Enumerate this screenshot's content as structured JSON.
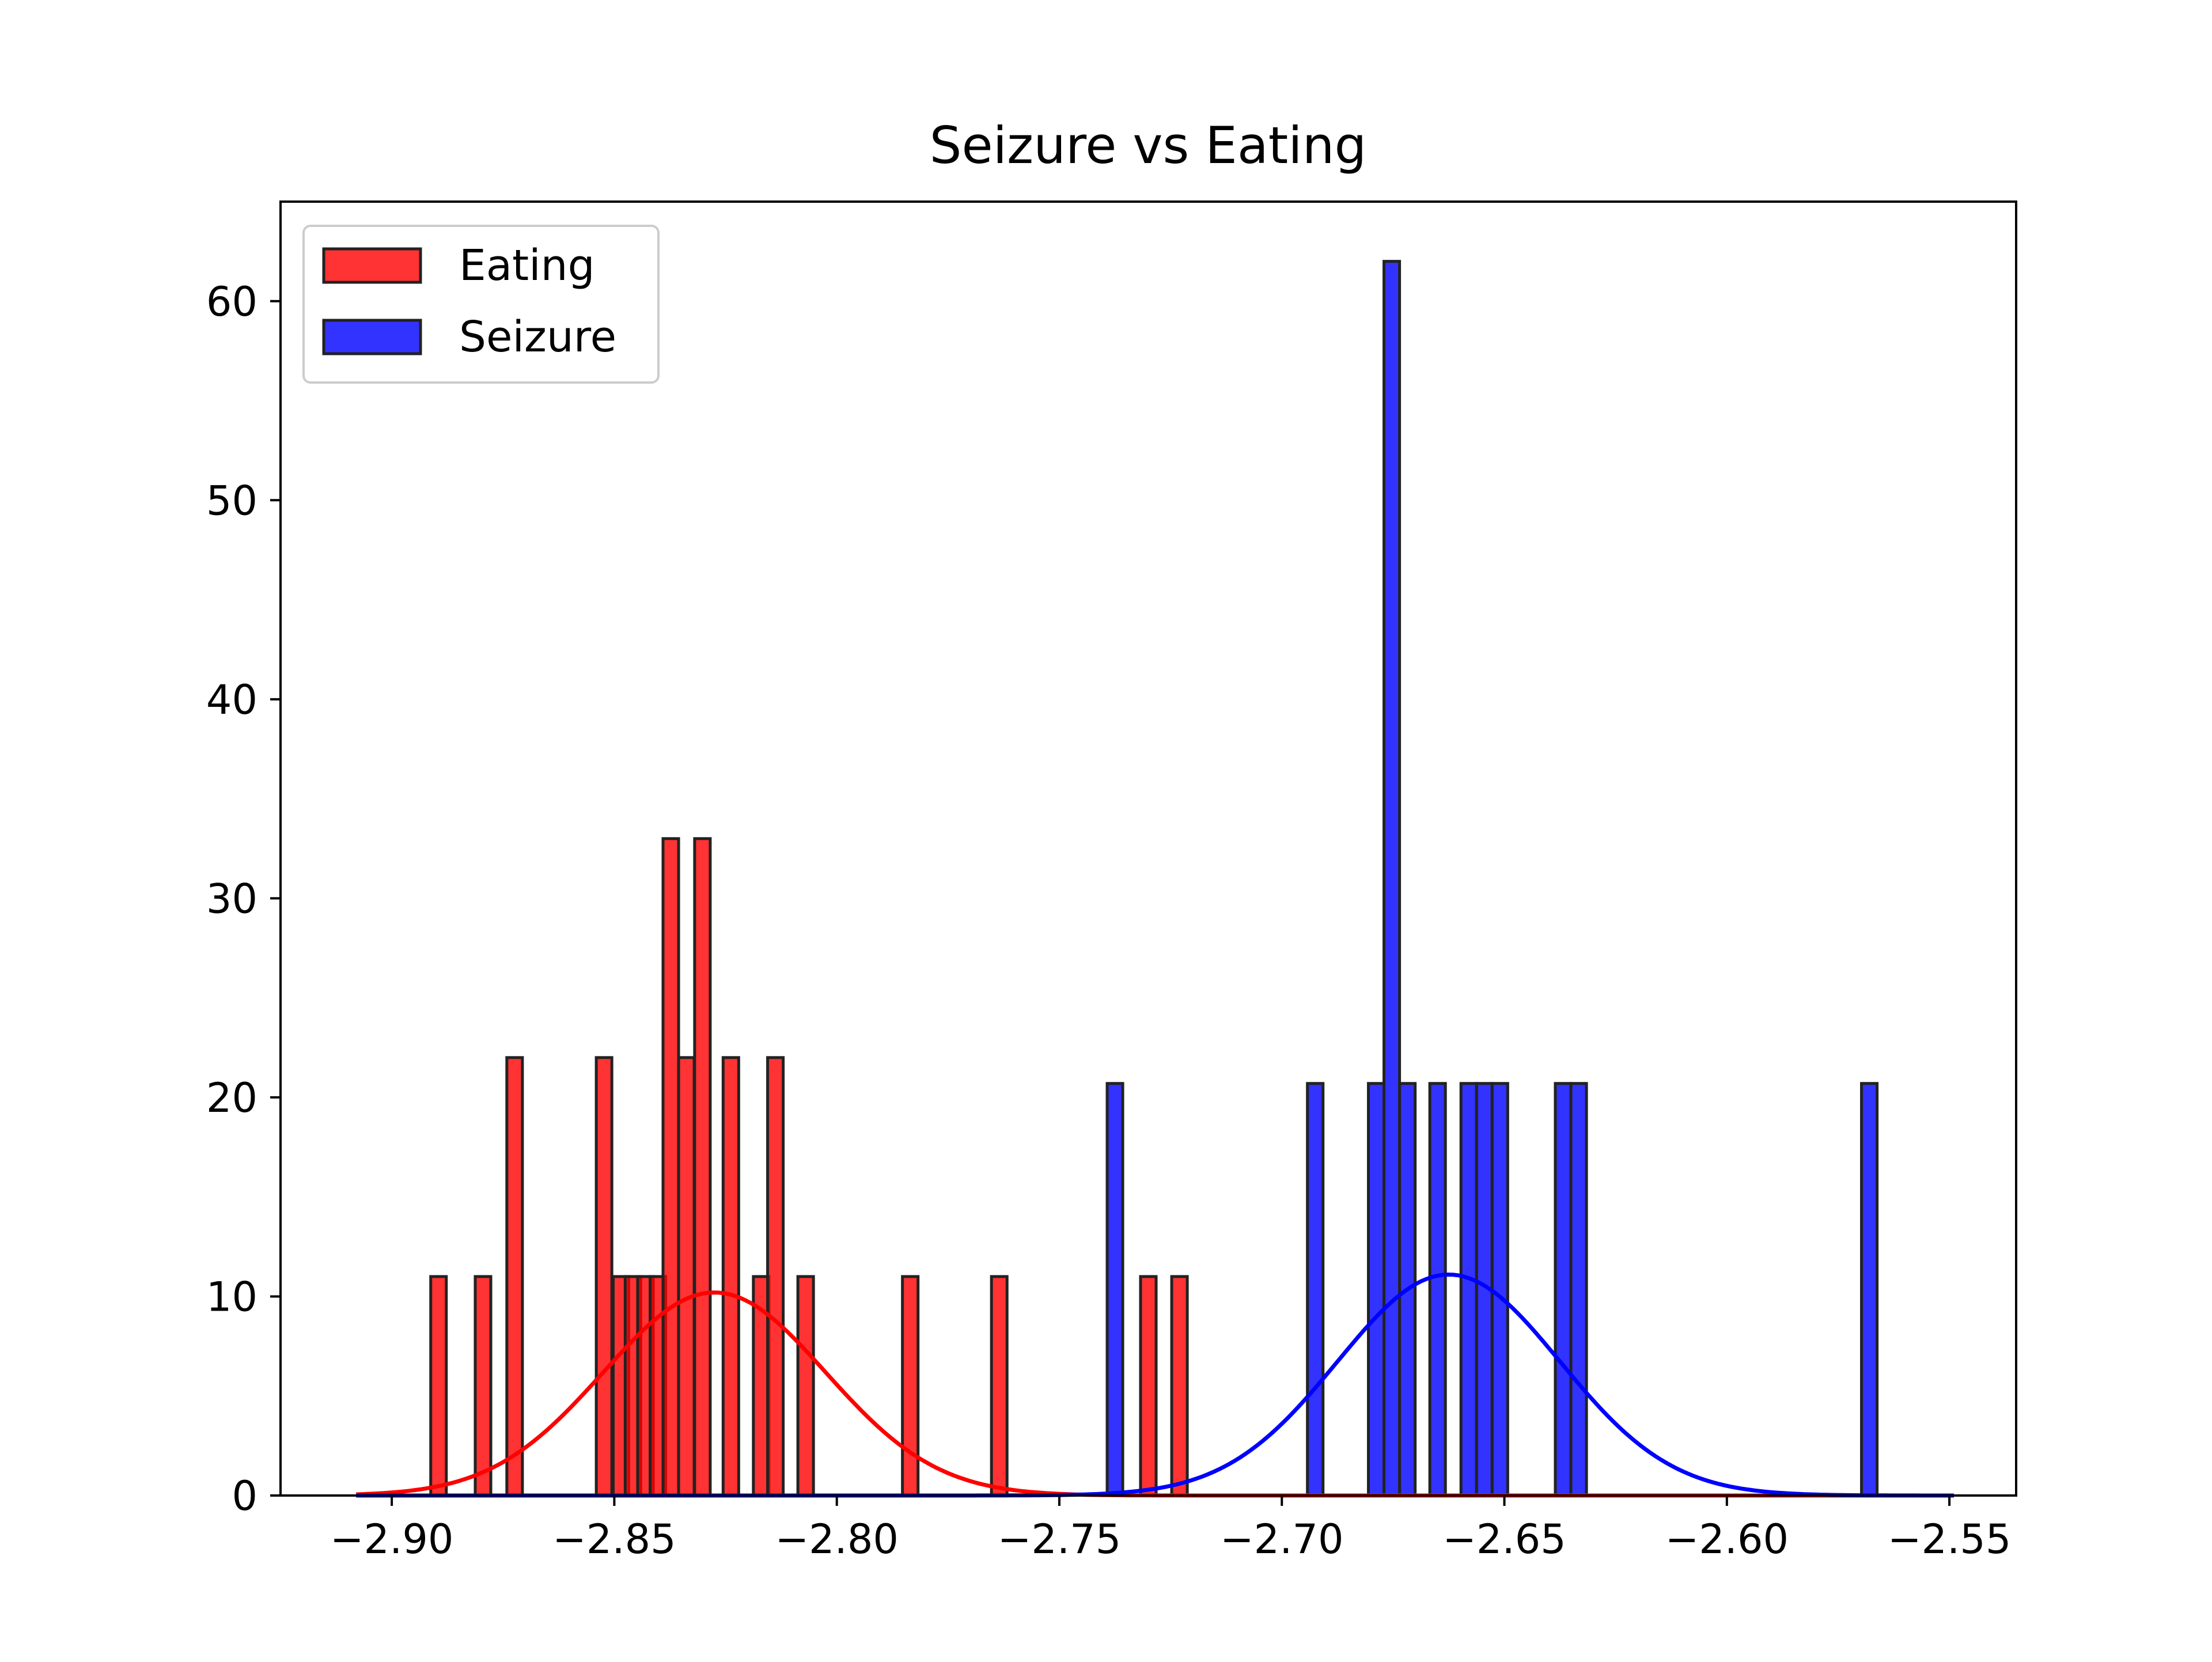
{
  "chart_data": {
    "type": "bar",
    "title": "Seizure vs Eating",
    "xlabel": "",
    "ylabel": "",
    "xlim": [
      -2.925,
      -2.535
    ],
    "ylim": [
      0,
      65
    ],
    "xticks": [
      -2.9,
      -2.85,
      -2.8,
      -2.75,
      -2.7,
      -2.65,
      -2.6,
      -2.55
    ],
    "xtick_labels": [
      "−2.90",
      "−2.85",
      "−2.80",
      "−2.75",
      "−2.70",
      "−2.65",
      "−2.60",
      "−2.55"
    ],
    "yticks": [
      0,
      10,
      20,
      30,
      40,
      50,
      60
    ],
    "ytick_labels": [
      "0",
      "10",
      "20",
      "30",
      "40",
      "50",
      "60"
    ],
    "grid": false,
    "legend_position": "top-left",
    "bin_width": 0.0035,
    "series": [
      {
        "name": "Eating",
        "color": "#ff0000",
        "edge_color": "#222222",
        "bars": [
          {
            "x": -2.8895,
            "height": 11
          },
          {
            "x": -2.8795,
            "height": 11
          },
          {
            "x": -2.8724,
            "height": 22
          },
          {
            "x": -2.8523,
            "height": 22
          },
          {
            "x": -2.8485,
            "height": 11
          },
          {
            "x": -2.8458,
            "height": 11
          },
          {
            "x": -2.843,
            "height": 11
          },
          {
            "x": -2.8402,
            "height": 11
          },
          {
            "x": -2.8373,
            "height": 33
          },
          {
            "x": -2.8338,
            "height": 22
          },
          {
            "x": -2.8302,
            "height": 33
          },
          {
            "x": -2.8238,
            "height": 22
          },
          {
            "x": -2.817,
            "height": 11
          },
          {
            "x": -2.8138,
            "height": 22
          },
          {
            "x": -2.807,
            "height": 11
          },
          {
            "x": -2.7835,
            "height": 11
          },
          {
            "x": -2.7635,
            "height": 11
          },
          {
            "x": -2.73,
            "height": 11
          },
          {
            "x": -2.723,
            "height": 11
          }
        ],
        "fit": {
          "mean": -2.8275,
          "sd": 0.025,
          "peak": 10.2
        }
      },
      {
        "name": "Seizure",
        "color": "#0000ff",
        "edge_color": "#222222",
        "bars": [
          {
            "x": -2.7375,
            "height": 20.7
          },
          {
            "x": -2.6925,
            "height": 20.7
          },
          {
            "x": -2.6788,
            "height": 20.7
          },
          {
            "x": -2.6753,
            "height": 62
          },
          {
            "x": -2.6718,
            "height": 20.7
          },
          {
            "x": -2.665,
            "height": 20.7
          },
          {
            "x": -2.658,
            "height": 20.7
          },
          {
            "x": -2.6545,
            "height": 20.7
          },
          {
            "x": -2.651,
            "height": 20.7
          },
          {
            "x": -2.6368,
            "height": 20.7
          },
          {
            "x": -2.6333,
            "height": 20.7
          },
          {
            "x": -2.568,
            "height": 20.7
          }
        ],
        "fit": {
          "mean": -2.6625,
          "sd": 0.025,
          "peak": 11.1
        }
      }
    ]
  }
}
